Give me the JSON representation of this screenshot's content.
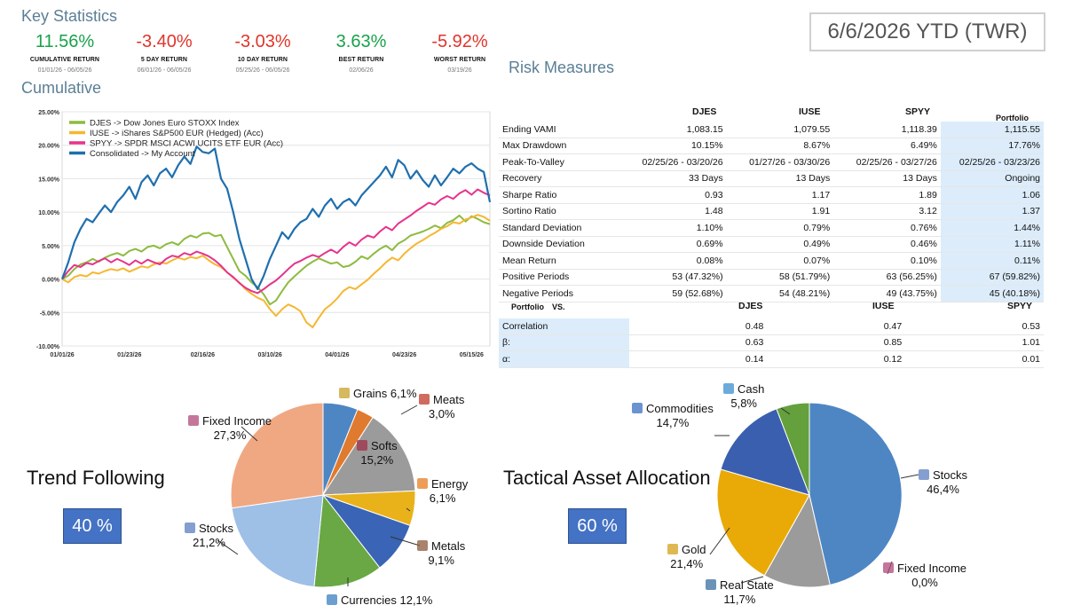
{
  "header": {
    "key_stats_title": "Key Statistics",
    "cumulative_title": "Cumulative",
    "risk_title": "Risk Measures",
    "period": "6/6/2026 YTD (TWR)"
  },
  "kpis": [
    {
      "value": "11.56%",
      "label": "CUMULATIVE RETURN",
      "date": "01/01/26 - 06/05/26",
      "tone": "pos"
    },
    {
      "value": "-3.40%",
      "label": "5 DAY RETURN",
      "date": "06/01/26 - 06/05/26",
      "tone": "neg"
    },
    {
      "value": "-3.03%",
      "label": "10 DAY RETURN",
      "date": "05/25/26 - 06/05/26",
      "tone": "neg"
    },
    {
      "value": "3.63%",
      "label": "BEST RETURN",
      "date": "02/06/26",
      "tone": "pos"
    },
    {
      "value": "-5.92%",
      "label": "WORST RETURN",
      "date": "03/19/26",
      "tone": "neg"
    }
  ],
  "risk": {
    "columns": [
      "DJES",
      "IUSE",
      "SPYY",
      "Portfolio"
    ],
    "rows": [
      {
        "label": "Ending VAMI",
        "values": [
          "1,083.15",
          "1,079.55",
          "1,118.39",
          "1,115.55"
        ]
      },
      {
        "label": "Max Drawdown",
        "values": [
          "10.15%",
          "8.67%",
          "6.49%",
          "17.76%"
        ]
      },
      {
        "label": "Peak-To-Valley",
        "values": [
          "02/25/26 - 03/20/26",
          "01/27/26 - 03/30/26",
          "02/25/26 - 03/27/26",
          "02/25/26 - 03/23/26"
        ]
      },
      {
        "label": "Recovery",
        "values": [
          "33 Days",
          "13 Days",
          "13 Days",
          "Ongoing"
        ]
      },
      {
        "label": "Sharpe Ratio",
        "values": [
          "0.93",
          "1.17",
          "1.89",
          "1.06"
        ]
      },
      {
        "label": "Sortino Ratio",
        "values": [
          "1.48",
          "1.91",
          "3.12",
          "1.37"
        ]
      },
      {
        "label": "Standard Deviation",
        "values": [
          "1.10%",
          "0.79%",
          "0.76%",
          "1.44%"
        ]
      },
      {
        "label": "Downside Deviation",
        "values": [
          "0.69%",
          "0.49%",
          "0.46%",
          "1.11%"
        ]
      },
      {
        "label": "Mean Return",
        "values": [
          "0.08%",
          "0.07%",
          "0.10%",
          "0.11%"
        ]
      },
      {
        "label": "Positive Periods",
        "values": [
          "53 (47.32%)",
          "58 (51.79%)",
          "63 (56.25%)",
          "67 (59.82%)"
        ]
      },
      {
        "label": "Negative Periods",
        "values": [
          "59 (52.68%)",
          "54 (48.21%)",
          "49 (43.75%)",
          "45 (40.18%)"
        ]
      }
    ]
  },
  "versus": {
    "title": "Portfolio",
    "vs": "VS.",
    "columns": [
      "DJES",
      "IUSE",
      "SPYY"
    ],
    "rows": [
      {
        "label": "Correlation",
        "values": [
          "0.48",
          "0.47",
          "0.53"
        ]
      },
      {
        "label": "β:",
        "values": [
          "0.63",
          "0.85",
          "1.01"
        ]
      },
      {
        "label": "α:",
        "values": [
          "0.14",
          "0.12",
          "0.01"
        ]
      }
    ]
  },
  "allocation": {
    "trend_label": "Trend Following",
    "trend_pct": "40 %",
    "tactical_label": "Tactical Asset Allocation",
    "tactical_pct": "60 %"
  },
  "chart_data": [
    {
      "type": "line",
      "title": "",
      "xlabel": "",
      "ylabel": "",
      "x_tick_labels": [
        "01/01/26",
        "01/23/26",
        "02/16/26",
        "03/10/26",
        "04/01/26",
        "04/23/26",
        "05/15/26"
      ],
      "y_tick_labels": [
        "25.00%",
        "20.00%",
        "15.00%",
        "10.00%",
        "5.00%",
        "0.00%",
        "-5.00%",
        "-10.00%"
      ],
      "ylim": [
        -10,
        25
      ],
      "grid": true,
      "legend_position": "top-left",
      "colors": {
        "DJES": "#8dbb3f",
        "IUSE": "#f5b731",
        "SPYY": "#e6338c",
        "Consolidated": "#1f6fae"
      },
      "series": [
        {
          "name": "DJES -> Dow Jones Euro STOXX Index",
          "key": "DJES",
          "values": [
            0,
            0.5,
            1.5,
            2.2,
            2.5,
            3,
            2.6,
            3.2,
            3.6,
            3.9,
            3.5,
            4.2,
            4.5,
            4.1,
            4.8,
            5.0,
            4.6,
            5.2,
            5.5,
            5.1,
            6.0,
            6.5,
            6.2,
            6.8,
            6.9,
            6.4,
            6.6,
            4.8,
            3.0,
            1.2,
            0.5,
            -0.5,
            -1.2,
            -2.3,
            -3.8,
            -3.2,
            -1.8,
            -0.5,
            0.4,
            1.2,
            2.0,
            2.6,
            3.1,
            2.7,
            2.3,
            2.5,
            1.8,
            2.0,
            2.6,
            3.4,
            3.0,
            3.8,
            4.5,
            5.0,
            4.3,
            5.3,
            5.8,
            6.5,
            6.8,
            7.1,
            7.5,
            8.0,
            7.6,
            8.4,
            8.8,
            9.5,
            8.6,
            9.4,
            9.0,
            8.5,
            8.2
          ]
        },
        {
          "name": "IUSE -> iShares S&P500 EUR (Hedged) (Acc)",
          "key": "IUSE",
          "values": [
            0,
            -0.5,
            0.3,
            0.6,
            0.4,
            1.0,
            0.8,
            1.2,
            1.5,
            1.3,
            1.6,
            1.1,
            1.5,
            1.9,
            1.7,
            2.2,
            2.5,
            2.3,
            2.8,
            3.2,
            2.9,
            3.3,
            3.1,
            3.5,
            2.8,
            2.2,
            1.8,
            1.0,
            0.2,
            -0.5,
            -1.5,
            -2.2,
            -2.8,
            -3.2,
            -4.5,
            -5.5,
            -4.5,
            -3.8,
            -4.2,
            -4.8,
            -6.5,
            -7.2,
            -5.8,
            -4.5,
            -3.8,
            -2.9,
            -1.8,
            -1.2,
            -1.5,
            -0.8,
            -0.1,
            0.8,
            1.6,
            2.5,
            3.2,
            2.8,
            3.8,
            4.6,
            5.3,
            5.8,
            6.4,
            6.9,
            7.5,
            7.9,
            8.5,
            8.3,
            8.9,
            9.2,
            9.6,
            9.3,
            8.7
          ]
        },
        {
          "name": "SPYY -> SPDR MSCI ACWI UCITS ETF EUR (Acc)",
          "key": "SPYY",
          "values": [
            0,
            1.2,
            2.1,
            1.8,
            2.4,
            2.2,
            2.7,
            3.1,
            2.5,
            3.0,
            2.6,
            2.1,
            2.8,
            2.3,
            2.9,
            2.5,
            2.2,
            3.0,
            3.5,
            3.3,
            3.9,
            3.6,
            4.1,
            3.8,
            3.4,
            2.8,
            2.0,
            1.0,
            0.3,
            -0.6,
            -1.3,
            -1.8,
            -2.1,
            -1.5,
            -0.8,
            -0.2,
            0.6,
            1.5,
            2.3,
            2.7,
            3.2,
            3.6,
            3.3,
            3.9,
            4.4,
            3.9,
            4.8,
            5.5,
            5.0,
            5.9,
            6.5,
            6.2,
            7.1,
            7.8,
            7.3,
            8.3,
            8.9,
            9.5,
            10.2,
            10.8,
            11.4,
            11.1,
            11.9,
            12.4,
            12.0,
            12.8,
            13.3,
            12.6,
            13.4,
            12.9,
            12.5
          ]
        },
        {
          "name": "Consolidated -> My Account",
          "key": "Consolidated",
          "values": [
            0,
            2.5,
            5.5,
            7.5,
            9.0,
            8.5,
            9.8,
            11.0,
            10.0,
            11.5,
            12.5,
            13.8,
            12.0,
            14.5,
            15.5,
            14.0,
            15.8,
            16.5,
            15.2,
            17.0,
            18.3,
            17.2,
            19.8,
            19.0,
            18.8,
            19.5,
            15.0,
            13.5,
            10.0,
            6.0,
            3.0,
            0.0,
            -1.5,
            0.5,
            3.0,
            5.0,
            7.0,
            6.0,
            7.5,
            8.5,
            9.0,
            10.5,
            9.3,
            11.0,
            12.0,
            10.5,
            11.5,
            12.0,
            11.0,
            12.5,
            13.5,
            14.5,
            15.5,
            16.8,
            15.2,
            17.8,
            17.0,
            15.0,
            16.2,
            14.8,
            13.8,
            15.5,
            14.0,
            15.2,
            16.5,
            15.8,
            16.8,
            17.3,
            16.5,
            16.0,
            11.5
          ]
        }
      ]
    },
    {
      "type": "pie",
      "title": "Trend Following",
      "slices": [
        {
          "label": "Grains",
          "value": 6.1,
          "display": "6,1%",
          "color": "#4e86c4"
        },
        {
          "label": "Meats",
          "value": 3.0,
          "display": "3,0%",
          "color": "#e07a2f"
        },
        {
          "label": "Softs",
          "value": 15.2,
          "display": "15,2%",
          "color": "#9b9b9b"
        },
        {
          "label": "Energy",
          "value": 6.1,
          "display": "6,1%",
          "color": "#e9b21a"
        },
        {
          "label": "Metals",
          "value": 9.1,
          "display": "9,1%",
          "color": "#3a64b5"
        },
        {
          "label": "Currencies",
          "value": 12.1,
          "display": "12,1%",
          "color": "#69a845"
        },
        {
          "label": "Stocks",
          "value": 21.2,
          "display": "21,2%",
          "color": "#9ebfe6"
        },
        {
          "label": "Fixed Income",
          "value": 27.3,
          "display": "27,3%",
          "color": "#f0a882"
        }
      ]
    },
    {
      "type": "pie",
      "title": "Tactical Asset Allocation",
      "slices": [
        {
          "label": "Stocks",
          "value": 46.4,
          "display": "46,4%",
          "color": "#4e86c4"
        },
        {
          "label": "Fixed Income",
          "value": 0.0,
          "display": "0,0%",
          "color": "#e07a2f"
        },
        {
          "label": "Real State",
          "value": 11.7,
          "display": "11,7%",
          "color": "#9b9b9b"
        },
        {
          "label": "Gold",
          "value": 21.4,
          "display": "21,4%",
          "color": "#e9aa07"
        },
        {
          "label": "Commodities",
          "value": 14.7,
          "display": "14,7%",
          "color": "#3a5fae"
        },
        {
          "label": "Cash",
          "value": 5.8,
          "display": "5,8%",
          "color": "#64a03c"
        }
      ]
    }
  ]
}
